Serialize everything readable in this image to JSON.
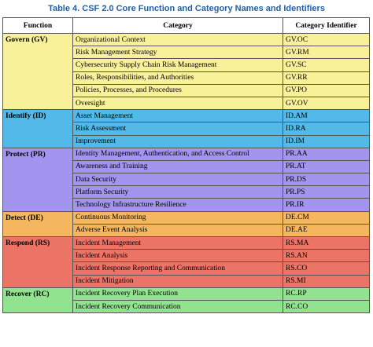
{
  "caption": "Table 4. CSF 2.0 Core Function and Category Names and Identifiers",
  "headers": {
    "function": "Function",
    "category": "Category",
    "identifier": "Category Identifier"
  },
  "functions": [
    {
      "label": "Govern (GV)",
      "color": "#f9f19a",
      "rows": [
        {
          "category": "Organizational Context",
          "id": "GV.OC"
        },
        {
          "category": "Risk Management Strategy",
          "id": "GV.RM"
        },
        {
          "category": "Cybersecurity Supply Chain Risk Management",
          "id": "GV.SC"
        },
        {
          "category": "Roles, Responsibilities, and Authorities",
          "id": "GV.RR"
        },
        {
          "category": "Policies, Processes, and Procedures",
          "id": "GV.PO"
        },
        {
          "category": "Oversight",
          "id": "GV.OV"
        }
      ]
    },
    {
      "label": "Identify (ID)",
      "color": "#52b9e8",
      "rows": [
        {
          "category": "Asset Management",
          "id": "ID.AM"
        },
        {
          "category": "Risk Assessment",
          "id": "ID.RA"
        },
        {
          "category": "Improvement",
          "id": "ID.IM"
        }
      ]
    },
    {
      "label": "Protect (PR)",
      "color": "#a394ef",
      "rows": [
        {
          "category": "Identity Management, Authentication, and Access Control",
          "id": "PR.AA"
        },
        {
          "category": "Awareness and Training",
          "id": "PR.AT"
        },
        {
          "category": "Data Security",
          "id": "PR.DS"
        },
        {
          "category": "Platform Security",
          "id": "PR.PS"
        },
        {
          "category": "Technology Infrastructure Resilience",
          "id": "PR.IR"
        }
      ]
    },
    {
      "label": "Detect (DE)",
      "color": "#f5b660",
      "rows": [
        {
          "category": "Continuous Monitoring",
          "id": "DE.CM"
        },
        {
          "category": "Adverse Event Analysis",
          "id": "DE.AE"
        }
      ]
    },
    {
      "label": "Respond (RS)",
      "color": "#ec7467",
      "rows": [
        {
          "category": "Incident Management",
          "id": "RS.MA"
        },
        {
          "category": "Incident Analysis",
          "id": "RS.AN"
        },
        {
          "category": "Incident Response Reporting and Communication",
          "id": "RS.CO"
        },
        {
          "category": "Incident Mitigation",
          "id": "RS.MI"
        }
      ]
    },
    {
      "label": "Recover (RC)",
      "color": "#92e38f",
      "rows": [
        {
          "category": "Incident Recovery Plan Execution",
          "id": "RC.RP"
        },
        {
          "category": "Incident Recovery Communication",
          "id": "RC.CO"
        }
      ]
    }
  ]
}
